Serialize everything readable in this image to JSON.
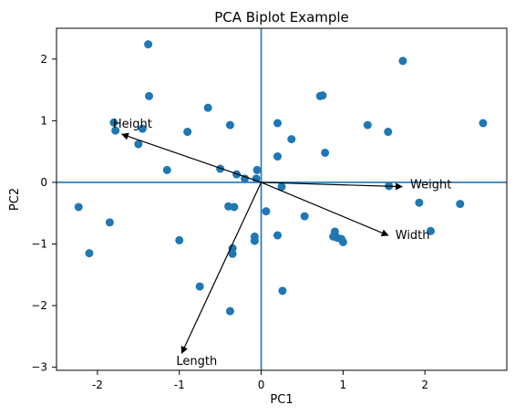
{
  "chart_data": {
    "type": "scatter",
    "title": "PCA Biplot Example",
    "xlabel": "PC1",
    "ylabel": "PC2",
    "xlim": [
      -2.5,
      3.0
    ],
    "ylim": [
      -3.05,
      2.5
    ],
    "x_ticks": [
      -2,
      -1,
      0,
      1,
      2
    ],
    "y_ticks": [
      -3,
      -2,
      -1,
      0,
      1,
      2
    ],
    "grid": false,
    "reference_lines": {
      "x": 0,
      "y": 0,
      "color": "#1f77b4"
    },
    "points": [
      {
        "x": -1.38,
        "y": 2.24
      },
      {
        "x": 1.73,
        "y": 1.97
      },
      {
        "x": 0.72,
        "y": 1.4
      },
      {
        "x": 0.75,
        "y": 1.41
      },
      {
        "x": -1.37,
        "y": 1.4
      },
      {
        "x": -0.65,
        "y": 1.21
      },
      {
        "x": -1.8,
        "y": 0.97
      },
      {
        "x": 0.2,
        "y": 0.96
      },
      {
        "x": -0.38,
        "y": 0.93
      },
      {
        "x": 1.3,
        "y": 0.93
      },
      {
        "x": 2.71,
        "y": 0.96
      },
      {
        "x": -1.45,
        "y": 0.87
      },
      {
        "x": -1.78,
        "y": 0.84
      },
      {
        "x": -0.9,
        "y": 0.82
      },
      {
        "x": 1.55,
        "y": 0.82
      },
      {
        "x": 0.37,
        "y": 0.7
      },
      {
        "x": -1.5,
        "y": 0.62
      },
      {
        "x": 0.78,
        "y": 0.48
      },
      {
        "x": 0.2,
        "y": 0.42
      },
      {
        "x": -1.15,
        "y": 0.2
      },
      {
        "x": -0.5,
        "y": 0.22
      },
      {
        "x": -0.3,
        "y": 0.13
      },
      {
        "x": -0.2,
        "y": 0.06
      },
      {
        "x": -0.05,
        "y": 0.2
      },
      {
        "x": -0.06,
        "y": 0.06
      },
      {
        "x": 1.56,
        "y": -0.06
      },
      {
        "x": 0.25,
        "y": -0.07
      },
      {
        "x": 1.93,
        "y": -0.33
      },
      {
        "x": 2.43,
        "y": -0.35
      },
      {
        "x": -2.23,
        "y": -0.4
      },
      {
        "x": -0.4,
        "y": -0.39
      },
      {
        "x": -0.33,
        "y": -0.4
      },
      {
        "x": 0.06,
        "y": -0.47
      },
      {
        "x": 0.53,
        "y": -0.55
      },
      {
        "x": -1.85,
        "y": -0.65
      },
      {
        "x": 2.07,
        "y": -0.79
      },
      {
        "x": 0.9,
        "y": -0.8
      },
      {
        "x": 0.2,
        "y": -0.86
      },
      {
        "x": 0.88,
        "y": -0.88
      },
      {
        "x": -0.08,
        "y": -0.88
      },
      {
        "x": 0.93,
        "y": -0.9
      },
      {
        "x": 0.98,
        "y": -0.92
      },
      {
        "x": -0.08,
        "y": -0.95
      },
      {
        "x": 1.0,
        "y": -0.97
      },
      {
        "x": -1.0,
        "y": -0.94
      },
      {
        "x": -0.35,
        "y": -1.07
      },
      {
        "x": -2.1,
        "y": -1.15
      },
      {
        "x": -0.35,
        "y": -1.16
      },
      {
        "x": -0.75,
        "y": -1.69
      },
      {
        "x": 0.26,
        "y": -1.76
      },
      {
        "x": -0.38,
        "y": -2.09
      }
    ],
    "loadings": [
      {
        "label": "Height",
        "x": -1.7,
        "y": 0.78
      },
      {
        "label": "Weight",
        "x": 1.72,
        "y": -0.07
      },
      {
        "label": "Width",
        "x": 1.55,
        "y": -0.86
      },
      {
        "label": "Length",
        "x": -0.97,
        "y": -2.77
      }
    ],
    "colors": {
      "points": "#1f77b4",
      "reference_lines": "#1f77b4",
      "arrows": "#000000",
      "axes": "#000000"
    }
  }
}
